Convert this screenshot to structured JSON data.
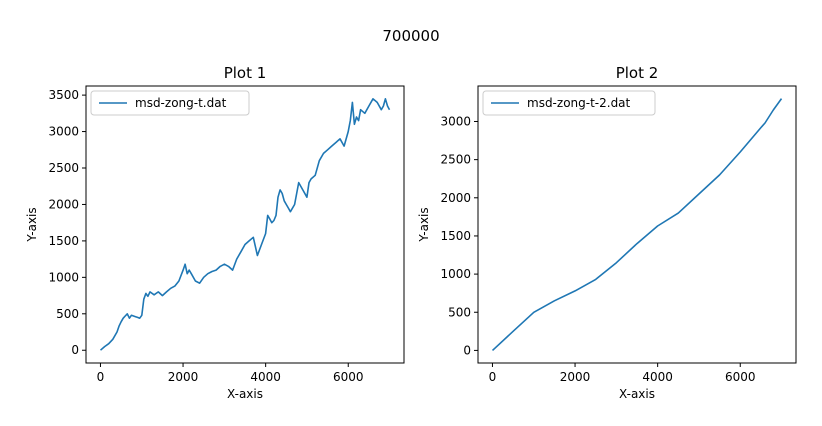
{
  "figure_title": "700000",
  "chart_data": [
    {
      "type": "line",
      "title": "Plot 1",
      "xlabel": "X-axis",
      "ylabel": "Y-axis",
      "xlim": [
        -350,
        7350
      ],
      "ylim": [
        -175,
        3625
      ],
      "xticks": [
        0,
        2000,
        4000,
        6000
      ],
      "yticks": [
        0,
        500,
        1000,
        1500,
        2000,
        2500,
        3000,
        3500
      ],
      "legend_position": "upper-left",
      "grid": false,
      "series": [
        {
          "name": "msd-zong-t.dat",
          "color": "#1f77b4",
          "x": [
            0,
            100,
            200,
            300,
            400,
            450,
            500,
            550,
            600,
            650,
            700,
            750,
            800,
            850,
            900,
            950,
            1000,
            1050,
            1100,
            1150,
            1200,
            1300,
            1400,
            1500,
            1600,
            1700,
            1800,
            1900,
            2000,
            2050,
            2100,
            2150,
            2200,
            2300,
            2400,
            2500,
            2600,
            2700,
            2800,
            2900,
            3000,
            3100,
            3200,
            3300,
            3400,
            3500,
            3600,
            3700,
            3800,
            3900,
            4000,
            4050,
            4100,
            4150,
            4200,
            4250,
            4300,
            4350,
            4400,
            4450,
            4500,
            4550,
            4600,
            4700,
            4800,
            4900,
            5000,
            5050,
            5100,
            5200,
            5300,
            5400,
            5500,
            5600,
            5700,
            5800,
            5900,
            6000,
            6050,
            6100,
            6150,
            6200,
            6250,
            6300,
            6400,
            6500,
            6600,
            6700,
            6800,
            6850,
            6900,
            6950,
            7000
          ],
          "y": [
            0,
            50,
            90,
            150,
            250,
            330,
            390,
            440,
            470,
            500,
            440,
            480,
            470,
            460,
            450,
            440,
            480,
            700,
            780,
            740,
            800,
            760,
            800,
            750,
            800,
            850,
            880,
            950,
            1100,
            1180,
            1050,
            1100,
            1050,
            950,
            920,
            1000,
            1050,
            1080,
            1100,
            1150,
            1180,
            1150,
            1100,
            1250,
            1350,
            1450,
            1500,
            1550,
            1300,
            1450,
            1600,
            1850,
            1800,
            1750,
            1780,
            1850,
            2100,
            2200,
            2150,
            2050,
            2000,
            1950,
            1900,
            2000,
            2300,
            2200,
            2100,
            2300,
            2350,
            2400,
            2600,
            2700,
            2750,
            2800,
            2850,
            2900,
            2800,
            3000,
            3150,
            3400,
            3100,
            3200,
            3150,
            3300,
            3250,
            3350,
            3450,
            3400,
            3300,
            3350,
            3450,
            3350,
            3300
          ]
        }
      ]
    },
    {
      "type": "line",
      "title": "Plot 2",
      "xlabel": "X-axis",
      "ylabel": "Y-axis",
      "xlim": [
        -350,
        7350
      ],
      "ylim": [
        -165,
        3465
      ],
      "xticks": [
        0,
        2000,
        4000,
        6000
      ],
      "yticks": [
        0,
        500,
        1000,
        1500,
        2000,
        2500,
        3000
      ],
      "legend_position": "upper-left",
      "grid": false,
      "series": [
        {
          "name": "msd-zong-t-2.dat",
          "color": "#1f77b4",
          "x": [
            0,
            500,
            1000,
            1500,
            2000,
            2500,
            3000,
            3500,
            4000,
            4500,
            5000,
            5500,
            6000,
            6500,
            6600,
            6800,
            7000
          ],
          "y": [
            0,
            250,
            500,
            650,
            780,
            930,
            1150,
            1400,
            1630,
            1800,
            2050,
            2300,
            2600,
            2920,
            2980,
            3150,
            3300
          ]
        }
      ]
    }
  ]
}
